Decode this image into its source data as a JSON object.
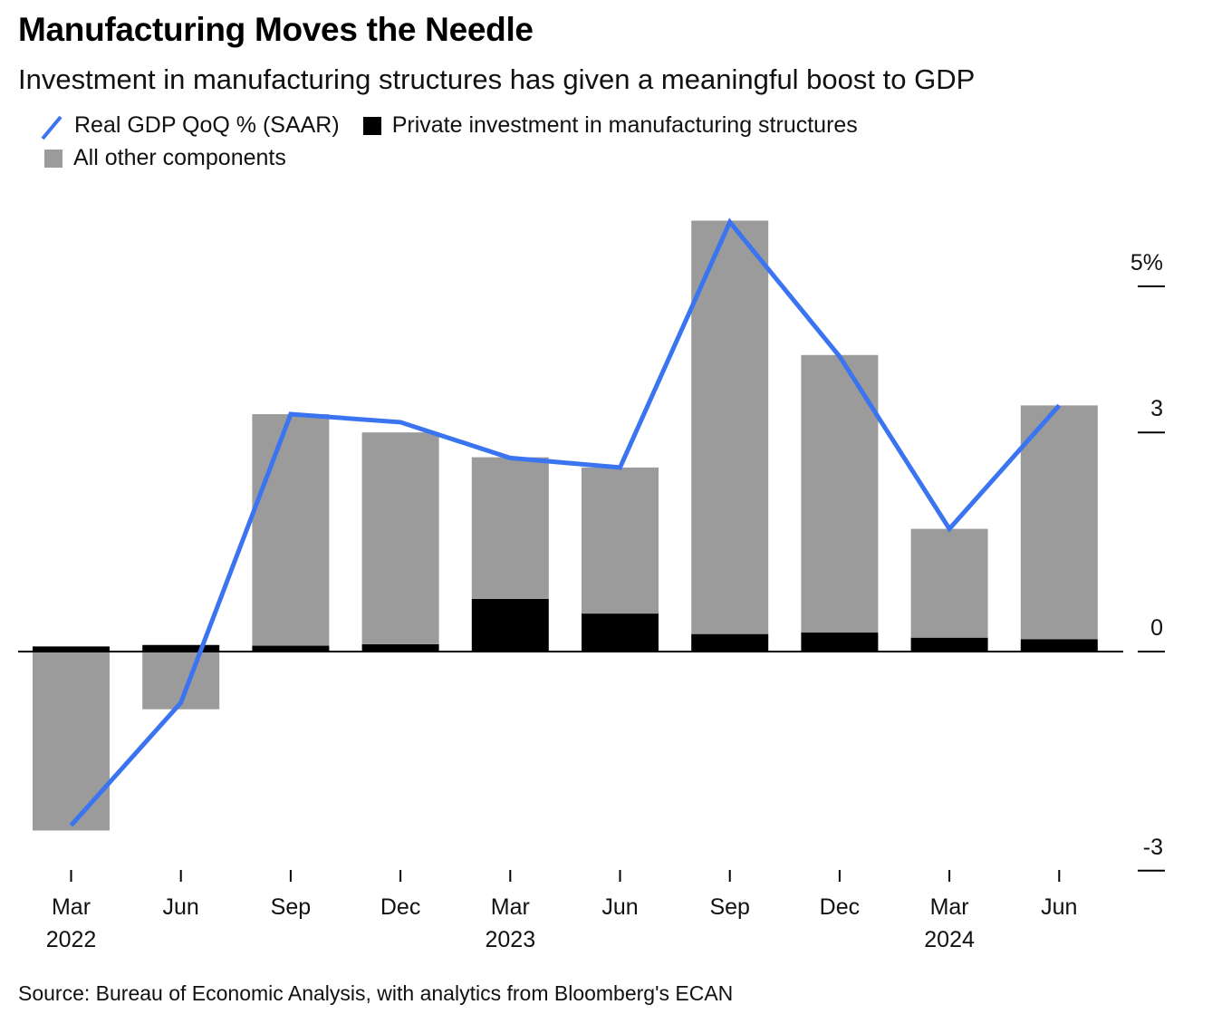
{
  "title": "Manufacturing Moves the Needle",
  "subtitle": "Investment in manufacturing structures has given a meaningful boost to GDP",
  "legend": {
    "line": "Real GDP QoQ % (SAAR)",
    "mfg": "Private investment in manufacturing structures",
    "other": "All other components"
  },
  "source": "Source: Bureau of Economic Analysis, with analytics from Bloomberg's ECAN",
  "colors": {
    "line": "#3a74f0",
    "mfg": "#000000",
    "other": "#9b9b9b"
  },
  "chart_data": {
    "type": "bar",
    "stacked": true,
    "categories": [
      "Mar 2022",
      "Jun 2022",
      "Sep 2022",
      "Dec 2022",
      "Mar 2023",
      "Jun 2023",
      "Sep 2023",
      "Dec 2023",
      "Mar 2024",
      "Jun 2024"
    ],
    "x_tick_labels": [
      {
        "month": "Mar",
        "year": "2022"
      },
      {
        "month": "Jun",
        "year": ""
      },
      {
        "month": "Sep",
        "year": ""
      },
      {
        "month": "Dec",
        "year": ""
      },
      {
        "month": "Mar",
        "year": "2023"
      },
      {
        "month": "Jun",
        "year": ""
      },
      {
        "month": "Sep",
        "year": ""
      },
      {
        "month": "Dec",
        "year": ""
      },
      {
        "month": "Mar",
        "year": "2024"
      },
      {
        "month": "Jun",
        "year": ""
      }
    ],
    "series": [
      {
        "name": "Private investment in manufacturing structures",
        "type": "bar",
        "values": [
          0.07,
          0.09,
          0.08,
          0.1,
          0.72,
          0.52,
          0.24,
          0.26,
          0.19,
          0.17
        ]
      },
      {
        "name": "All other components",
        "type": "bar",
        "values": [
          -2.45,
          -0.79,
          3.17,
          2.9,
          1.94,
          2.0,
          5.66,
          3.8,
          1.49,
          3.2
        ]
      },
      {
        "name": "Real GDP QoQ % (SAAR)",
        "type": "line",
        "values": [
          -2.38,
          -0.7,
          3.25,
          3.14,
          2.65,
          2.52,
          5.88,
          4.04,
          1.68,
          3.37
        ]
      }
    ],
    "y_ticks": [
      {
        "value": 5,
        "label": "5%"
      },
      {
        "value": 3,
        "label": "3"
      },
      {
        "value": 0,
        "label": "0"
      },
      {
        "value": -3,
        "label": "-3"
      }
    ],
    "ylim": [
      -3,
      6
    ],
    "y_axis_position": "right",
    "grid": false,
    "legend_position": "top-left"
  }
}
